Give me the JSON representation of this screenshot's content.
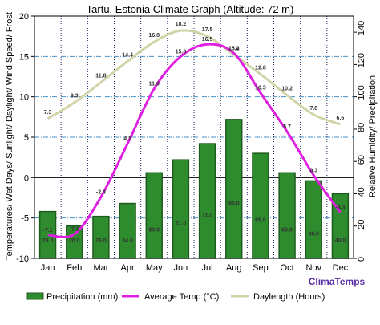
{
  "chart_data": {
    "type": "bar",
    "title": "Tartu, Estonia Climate Graph (Altitude: 72 m)",
    "ylabel_left": "Temperatures/ Wet Days/ Sunlight/ Daylight/ Wind Speed/ Frost",
    "ylabel_right": "Relative Humidity/ Precipitation",
    "categories": [
      "Jan",
      "Feb",
      "Mar",
      "Apr",
      "May",
      "Jun",
      "Jul",
      "Aug",
      "Sep",
      "Oct",
      "Nov",
      "Dec"
    ],
    "ylim_left": [
      -10,
      20
    ],
    "yticks_left": [
      "20",
      "15",
      "10",
      "5",
      "0",
      "-5",
      "-10"
    ],
    "ylim_right": [
      0,
      150
    ],
    "yticks_right": [
      "140",
      "120",
      "100",
      "80",
      "60",
      "40",
      "20",
      "0"
    ],
    "series": [
      {
        "name": "Precipitation (mm)",
        "type": "bar",
        "axis": "right",
        "color": "#2e8b2e",
        "values": [
          29.0,
          20.0,
          26.0,
          34.0,
          53.0,
          61.0,
          71.0,
          86.0,
          65.0,
          53.0,
          48.0,
          40.0
        ],
        "labels": [
          "29.0",
          "20.0",
          "26.0",
          "34.0",
          "53.0",
          "61.0",
          "71.0",
          "86.0",
          "65.0",
          "53.0",
          "48.0",
          "40.0"
        ]
      },
      {
        "name": "Average Temp (°C)",
        "type": "line",
        "axis": "left",
        "color": "#e020e0",
        "values": [
          -7.1,
          -7.0,
          -2.4,
          4.2,
          11.0,
          15.0,
          16.5,
          15.4,
          10.5,
          5.7,
          0.3,
          -4.3
        ],
        "labels": [
          "-7.1",
          "-7.0",
          "-2.4",
          "4.2",
          "11.0",
          "15.0",
          "16.5",
          "15.4",
          "10.5",
          "5.7",
          "0.3",
          "-4.3"
        ]
      },
      {
        "name": "Daylength (Hours)",
        "type": "line",
        "axis": "left",
        "color": "#d2d4a8",
        "values": [
          7.3,
          9.3,
          11.8,
          14.4,
          16.8,
          18.2,
          17.5,
          15.2,
          12.8,
          10.2,
          7.8,
          6.6
        ],
        "labels": [
          "7.3",
          "9.3",
          "11.8",
          "14.4",
          "16.8",
          "18.2",
          "17.5",
          "15.2",
          "12.8",
          "10.2",
          "7.8",
          "6.6"
        ]
      }
    ],
    "grid": true,
    "legend_position": "bottom"
  },
  "brand": "ClimaTemps",
  "colors": {
    "bar_fill": "#2e8b2e",
    "bar_stroke": "#1d5a1d",
    "temp_line": "#e020e0",
    "day_line": "#d2d4a8",
    "hgrid": "#4a90c8",
    "vgrid": "#222266",
    "brand": "#5a2ea6"
  }
}
